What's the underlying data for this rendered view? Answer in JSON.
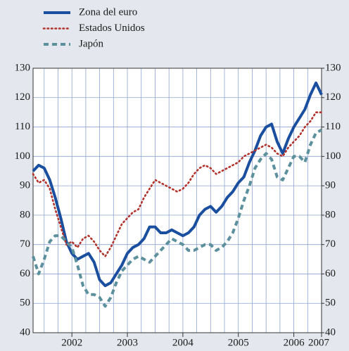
{
  "chart_data": {
    "type": "line",
    "x": [
      2001.8,
      2001.9,
      2002.0,
      2002.1,
      2002.2,
      2002.3,
      2002.4,
      2002.5,
      2002.6,
      2002.7,
      2002.8,
      2002.9,
      2003.0,
      2003.1,
      2003.2,
      2003.3,
      2003.4,
      2003.5,
      2003.6,
      2003.7,
      2003.8,
      2003.9,
      2004.0,
      2004.1,
      2004.2,
      2004.3,
      2004.4,
      2004.5,
      2004.6,
      2004.7,
      2004.8,
      2004.9,
      2005.0,
      2005.1,
      2005.2,
      2005.3,
      2005.4,
      2005.5,
      2005.6,
      2005.7,
      2005.8,
      2005.9,
      2006.0,
      2006.1,
      2006.2,
      2006.3,
      2006.4,
      2006.5,
      2006.6,
      2006.7,
      2006.8,
      2006.9,
      2007.0
    ],
    "series": [
      {
        "name": "Zona del euro",
        "color": "#1a4e9e",
        "style": "solid",
        "values": [
          95,
          97,
          96,
          92,
          86,
          79,
          71,
          67,
          65,
          66,
          67,
          64,
          58,
          56,
          57,
          60,
          63,
          67,
          69,
          70,
          72,
          76,
          76,
          74,
          74,
          75,
          74,
          73,
          74,
          76,
          80,
          82,
          83,
          81,
          83,
          86,
          88,
          91,
          93,
          98,
          102,
          107,
          110,
          111,
          105,
          101,
          106,
          110,
          113,
          116,
          121,
          125,
          121
        ]
      },
      {
        "name": "Estados Unidos",
        "color": "#b3322b",
        "style": "dotted",
        "values": [
          94,
          91,
          92,
          89,
          82,
          76,
          70,
          71,
          69,
          72,
          73,
          71,
          68,
          66,
          69,
          73,
          77,
          79,
          81,
          82,
          86,
          89,
          92,
          91,
          90,
          89,
          88,
          89,
          91,
          94,
          96,
          97,
          96,
          94,
          95,
          96,
          97,
          98,
          100,
          101,
          102,
          103,
          104,
          103,
          101,
          100,
          103,
          105,
          107,
          110,
          112,
          115,
          115
        ]
      },
      {
        "name": "Japón",
        "color": "#5b909c",
        "style": "dashed",
        "values": [
          66,
          60,
          65,
          71,
          73,
          73,
          71,
          69,
          63,
          56,
          53,
          53,
          52,
          49,
          52,
          57,
          61,
          63,
          65,
          66,
          65,
          64,
          66,
          68,
          70,
          72,
          71,
          70,
          68,
          68,
          69,
          70,
          70,
          68,
          69,
          71,
          74,
          79,
          85,
          90,
          96,
          99,
          101,
          99,
          93,
          92,
          96,
          100,
          100,
          98,
          104,
          108,
          109
        ]
      }
    ],
    "xlim": [
      2001.8,
      2007.0
    ],
    "xticks": [
      {
        "value": 2002.5,
        "label": "2002"
      },
      {
        "value": 2003.5,
        "label": "2003"
      },
      {
        "value": 2004.5,
        "label": "2004"
      },
      {
        "value": 2005.5,
        "label": "2005"
      },
      {
        "value": 2006.5,
        "label": "2006"
      },
      {
        "value": 2007.0,
        "label": "2007"
      }
    ],
    "xgrid": [
      2002.0,
      2002.25,
      2002.5,
      2002.75,
      2003.0,
      2003.25,
      2003.5,
      2003.75,
      2004.0,
      2004.25,
      2004.5,
      2004.75,
      2005.0,
      2005.25,
      2005.5,
      2005.75,
      2006.0,
      2006.25,
      2006.5,
      2006.75
    ],
    "ylim": [
      40,
      130
    ],
    "yticks": [
      40,
      50,
      60,
      70,
      80,
      90,
      100,
      110,
      120,
      130
    ],
    "y2lim": [
      40,
      130
    ],
    "y2ticks": [
      40,
      50,
      60,
      70,
      80,
      90,
      100,
      110,
      120,
      130
    ],
    "grid": true
  }
}
